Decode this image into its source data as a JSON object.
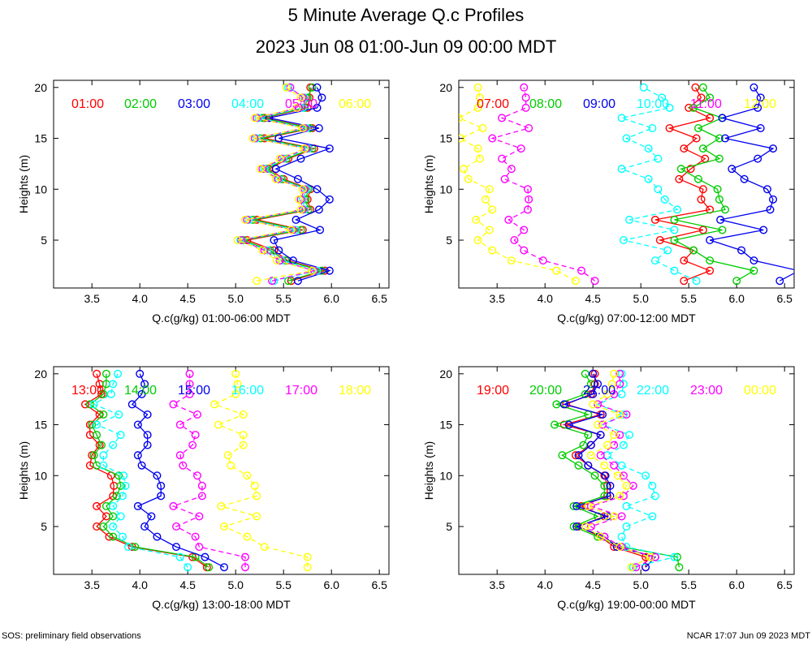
{
  "title": "5 Minute Average Q.c Profiles",
  "subtitle": "2023 Jun 08 01:00-Jun 09 00:00 MDT",
  "footer_left": "SOS: preliminary field observations",
  "footer_right": "NCAR 17:07 Jun 09 2023 MDT",
  "colors": [
    "#ff0000",
    "#00cc00",
    "#0000ee",
    "#00ffff",
    "#ff00ff",
    "#ffff00"
  ],
  "chart_data": [
    {
      "type": "line",
      "xlabel": "Q.c(g/kg) 01:00-06:00 MDT",
      "ylabel": "Heights (m)",
      "xlim": [
        3.1,
        6.6
      ],
      "ylim": [
        0.3,
        20.7
      ],
      "xticks": [
        "3.5",
        "4.0",
        "4.5",
        "5.0",
        "5.5",
        "6.0",
        "6.5"
      ],
      "yticks": [
        "5",
        "10",
        "15",
        "20"
      ],
      "heights": [
        1,
        2,
        3,
        4,
        5,
        6,
        7,
        8,
        9,
        10,
        11,
        12,
        13,
        14,
        15,
        16,
        17,
        18,
        19,
        20
      ],
      "series": [
        {
          "name": "01:00",
          "values": [
            5.58,
            5.93,
            5.54,
            5.4,
            5.12,
            5.7,
            5.22,
            5.78,
            5.75,
            5.78,
            5.5,
            5.35,
            5.55,
            5.82,
            5.3,
            5.8,
            5.3,
            5.75,
            5.77,
            5.78
          ]
        },
        {
          "name": "02:00",
          "values": [
            5.55,
            5.9,
            5.52,
            5.36,
            5.08,
            5.68,
            5.18,
            5.76,
            5.73,
            5.76,
            5.48,
            5.32,
            5.53,
            5.8,
            5.26,
            5.78,
            5.28,
            5.72,
            5.75,
            5.8
          ]
        },
        {
          "name": "03:00",
          "values": [
            5.65,
            5.98,
            5.6,
            5.45,
            5.4,
            5.88,
            5.63,
            5.87,
            5.98,
            5.85,
            5.65,
            5.42,
            5.68,
            5.98,
            5.45,
            5.87,
            5.35,
            5.85,
            5.9,
            5.85
          ]
        },
        {
          "name": "04:00",
          "values": [
            5.4,
            5.85,
            5.48,
            5.33,
            5.05,
            5.63,
            5.14,
            5.72,
            5.7,
            5.74,
            5.45,
            5.3,
            5.5,
            5.76,
            5.22,
            5.74,
            5.24,
            5.7,
            5.72,
            5.55
          ]
        },
        {
          "name": "05:00",
          "values": [
            5.38,
            5.82,
            5.46,
            5.3,
            5.06,
            5.6,
            5.12,
            5.7,
            5.68,
            5.72,
            5.44,
            5.28,
            5.48,
            5.74,
            5.2,
            5.72,
            5.22,
            5.66,
            5.7,
            5.57
          ]
        },
        {
          "name": "06:00",
          "values": [
            5.22,
            5.8,
            5.43,
            5.28,
            5.02,
            5.58,
            5.1,
            5.68,
            5.66,
            5.7,
            5.42,
            5.26,
            5.46,
            5.72,
            5.18,
            5.7,
            5.2,
            5.64,
            5.68,
            5.53
          ]
        }
      ]
    },
    {
      "type": "line",
      "xlabel": "Q.c(g/kg) 07:00-12:00 MDT",
      "ylabel": "Heights (m)",
      "xlim": [
        3.1,
        6.6
      ],
      "ylim": [
        0.3,
        20.7
      ],
      "xticks": [
        "3.5",
        "4.0",
        "4.5",
        "5.0",
        "5.5",
        "6.0",
        "6.5"
      ],
      "yticks": [
        "5",
        "10",
        "15",
        "20"
      ],
      "heights": [
        1,
        2,
        3,
        4,
        5,
        6,
        7,
        8,
        9,
        10,
        11,
        12,
        13,
        14,
        15,
        16,
        17,
        18,
        19,
        20
      ],
      "series": [
        {
          "name": "07:00",
          "values": [
            5.45,
            5.72,
            5.45,
            5.55,
            5.2,
            5.65,
            5.15,
            5.72,
            5.63,
            5.65,
            5.4,
            5.52,
            5.67,
            5.45,
            5.58,
            5.3,
            5.72,
            5.5,
            5.63,
            5.57
          ]
        },
        {
          "name": "08:00",
          "values": [
            6.0,
            6.18,
            5.72,
            5.55,
            5.35,
            5.85,
            5.35,
            5.88,
            5.82,
            5.8,
            5.6,
            5.42,
            5.82,
            5.65,
            5.82,
            5.6,
            5.85,
            5.55,
            5.72,
            5.65
          ]
        },
        {
          "name": "09:00",
          "values": [
            6.45,
            6.65,
            6.18,
            6.05,
            5.72,
            6.28,
            5.83,
            6.35,
            6.38,
            6.32,
            6.08,
            5.95,
            6.22,
            6.38,
            5.88,
            6.25,
            5.85,
            6.22,
            6.25,
            6.18
          ]
        },
        {
          "name": "10:00",
          "values": [
            5.58,
            5.35,
            5.15,
            5.28,
            4.82,
            5.35,
            4.88,
            5.38,
            5.25,
            5.18,
            5.08,
            4.8,
            5.18,
            5.08,
            4.85,
            5.12,
            4.8,
            5.3,
            5.22,
            5.03
          ]
        },
        {
          "name": "11:00",
          "values": [
            4.52,
            4.38,
            3.98,
            3.78,
            3.68,
            3.78,
            3.62,
            3.82,
            3.83,
            3.82,
            3.58,
            3.65,
            3.55,
            3.75,
            3.45,
            3.83,
            3.55,
            3.8,
            3.8,
            3.78
          ]
        },
        {
          "name": "12:00",
          "values": [
            4.32,
            4.12,
            3.65,
            3.45,
            3.3,
            3.42,
            3.28,
            3.45,
            3.38,
            3.42,
            3.2,
            3.15,
            3.32,
            3.3,
            3.12,
            3.35,
            3.1,
            3.3,
            3.32,
            3.3
          ]
        }
      ]
    },
    {
      "type": "line",
      "xlabel": "Q.c(g/kg) 13:00-18:00 MDT",
      "ylabel": "Heights (m)",
      "xlim": [
        3.1,
        6.6
      ],
      "ylim": [
        0.3,
        20.7
      ],
      "xticks": [
        "3.5",
        "4.0",
        "4.5",
        "5.0",
        "5.5",
        "6.0",
        "6.5"
      ],
      "yticks": [
        "5",
        "10",
        "15",
        "20"
      ],
      "heights": [
        1,
        2,
        3,
        4,
        5,
        6,
        7,
        8,
        9,
        10,
        11,
        12,
        13,
        14,
        15,
        16,
        17,
        18,
        19,
        20
      ],
      "series": [
        {
          "name": "13:00",
          "values": [
            4.7,
            4.55,
            3.92,
            3.68,
            3.55,
            3.65,
            3.55,
            3.72,
            3.73,
            3.7,
            3.48,
            3.5,
            3.58,
            3.48,
            3.48,
            3.58,
            3.43,
            3.6,
            3.58,
            3.55
          ]
        },
        {
          "name": "14:00",
          "values": [
            4.72,
            4.58,
            3.95,
            3.72,
            3.62,
            3.72,
            3.65,
            3.76,
            3.8,
            3.78,
            3.55,
            3.52,
            3.6,
            3.55,
            3.5,
            3.62,
            3.48,
            3.62,
            3.65,
            3.65
          ]
        },
        {
          "name": "15:00",
          "values": [
            4.88,
            4.68,
            4.38,
            4.18,
            4.05,
            4.12,
            3.98,
            4.22,
            4.22,
            4.18,
            4.02,
            3.98,
            4.08,
            4.08,
            3.98,
            4.08,
            3.92,
            4.02,
            4.05,
            4.0
          ]
        },
        {
          "name": "16:00",
          "values": [
            4.5,
            4.42,
            3.88,
            3.82,
            3.72,
            3.8,
            3.72,
            3.82,
            3.85,
            3.83,
            3.62,
            3.62,
            3.72,
            3.8,
            3.55,
            3.78,
            3.52,
            3.7,
            3.72,
            3.77
          ]
        },
        {
          "name": "17:00",
          "values": [
            5.1,
            5.1,
            4.62,
            4.58,
            4.38,
            4.62,
            4.35,
            4.65,
            4.65,
            4.6,
            4.45,
            4.42,
            4.55,
            4.58,
            4.42,
            4.6,
            4.35,
            4.52,
            4.52,
            4.52
          ]
        },
        {
          "name": "18:00",
          "values": [
            5.75,
            5.75,
            5.3,
            5.12,
            4.88,
            5.22,
            4.85,
            5.22,
            5.2,
            5.12,
            4.95,
            4.92,
            5.08,
            5.08,
            4.82,
            5.08,
            4.78,
            5.0,
            5.02,
            5.0
          ]
        }
      ]
    },
    {
      "type": "line",
      "xlabel": "Q.c(g/kg) 19:00-00:00 MDT",
      "ylabel": "Heights (m)",
      "xlim": [
        3.1,
        6.6
      ],
      "ylim": [
        0.3,
        20.7
      ],
      "xticks": [
        "3.5",
        "4.0",
        "4.5",
        "5.0",
        "5.5",
        "6.0",
        "6.5"
      ],
      "yticks": [
        "5",
        "10",
        "15",
        "20"
      ],
      "heights": [
        1,
        2,
        3,
        4,
        5,
        6,
        7,
        8,
        9,
        10,
        11,
        12,
        13,
        14,
        15,
        16,
        17,
        18,
        19,
        20
      ],
      "series": [
        {
          "name": "19:00",
          "values": [
            5.05,
            5.05,
            4.72,
            4.58,
            4.35,
            4.62,
            4.38,
            4.65,
            4.65,
            4.62,
            4.45,
            4.32,
            4.48,
            4.58,
            4.2,
            4.58,
            4.22,
            4.48,
            4.52,
            4.52
          ]
        },
        {
          "name": "20:00",
          "values": [
            5.4,
            5.38,
            4.8,
            4.55,
            4.3,
            4.55,
            4.3,
            4.62,
            4.62,
            4.52,
            4.35,
            4.18,
            4.4,
            4.45,
            4.1,
            4.45,
            4.12,
            4.42,
            4.48,
            4.42
          ]
        },
        {
          "name": "21:00",
          "values": [
            5.05,
            5.15,
            4.75,
            4.62,
            4.33,
            4.65,
            4.33,
            4.68,
            4.68,
            4.63,
            4.45,
            4.35,
            4.48,
            4.58,
            4.25,
            4.6,
            4.2,
            4.5,
            4.55,
            4.5
          ]
        },
        {
          "name": "22:00",
          "values": [
            4.92,
            5.35,
            4.85,
            4.8,
            4.85,
            5.12,
            4.85,
            5.15,
            5.12,
            5.05,
            4.8,
            4.65,
            4.82,
            4.88,
            4.6,
            4.82,
            4.55,
            4.8,
            4.82,
            4.8
          ]
        },
        {
          "name": "23:00",
          "values": [
            4.95,
            5.15,
            4.8,
            4.62,
            4.48,
            4.8,
            4.48,
            4.82,
            4.92,
            4.82,
            4.72,
            4.58,
            4.72,
            4.78,
            4.6,
            4.85,
            4.55,
            4.72,
            4.78,
            4.78
          ]
        },
        {
          "name": "00:00",
          "values": [
            4.9,
            5.1,
            4.78,
            4.58,
            4.42,
            4.72,
            4.45,
            4.78,
            4.85,
            4.76,
            4.62,
            4.48,
            4.65,
            4.72,
            4.55,
            4.78,
            4.5,
            4.65,
            4.7,
            4.72
          ]
        }
      ]
    }
  ]
}
